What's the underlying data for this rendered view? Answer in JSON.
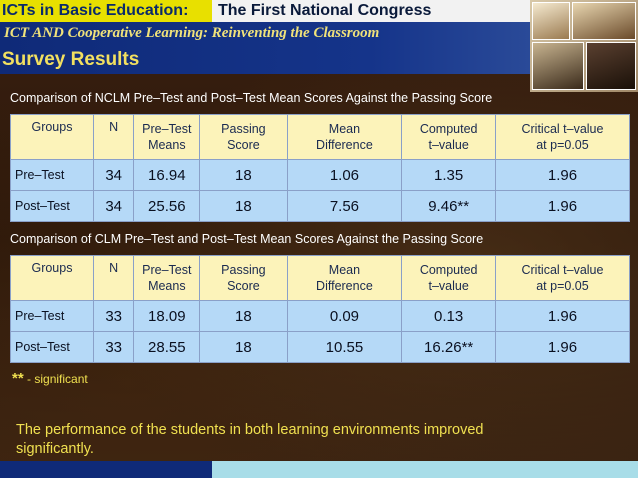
{
  "header": {
    "left_label": "ICTs in Basic Education:",
    "right_label": "The First National Congress",
    "subtitle": "ICT AND Cooperative Learning: Reinventing the Classroom",
    "section_title": "Survey Results"
  },
  "table1": {
    "caption": "Comparison of NCLM Pre–Test and Post–Test Mean Scores Against the Passing Score",
    "headers": [
      {
        "l1": "Groups",
        "l2": ""
      },
      {
        "l1": "N",
        "l2": ""
      },
      {
        "l1": "Pre–Test",
        "l2": "Means"
      },
      {
        "l1": "Passing",
        "l2": "Score"
      },
      {
        "l1": "Mean",
        "l2": "Difference"
      },
      {
        "l1": "Computed",
        "l2": "t–value"
      },
      {
        "l1": "Critical t–value",
        "l2": "at p=0.05"
      }
    ],
    "rows": [
      [
        "Pre–Test",
        "34",
        "16.94",
        "18",
        "1.06",
        "1.35",
        "1.96"
      ],
      [
        "Post–Test",
        "34",
        "25.56",
        "18",
        "7.56",
        "9.46**",
        "1.96"
      ]
    ]
  },
  "table2": {
    "caption": "Comparison of CLM Pre–Test and Post–Test Mean Scores Against the Passing Score",
    "headers": [
      {
        "l1": "Groups",
        "l2": ""
      },
      {
        "l1": "N",
        "l2": ""
      },
      {
        "l1": "Pre–Test",
        "l2": "Means"
      },
      {
        "l1": "Passing",
        "l2": "Score"
      },
      {
        "l1": "Mean",
        "l2": "Difference"
      },
      {
        "l1": "Computed",
        "l2": "t–value"
      },
      {
        "l1": "Critical t–value",
        "l2": "at p=0.05"
      }
    ],
    "rows": [
      [
        "Pre–Test",
        "33",
        "18.09",
        "18",
        "0.09",
        "0.13",
        "1.96"
      ],
      [
        "Post–Test",
        "33",
        "28.55",
        "18",
        "10.55",
        "16.26**",
        "1.96"
      ]
    ]
  },
  "note": {
    "stars": "**",
    "text": " - significant"
  },
  "conclusion": "The performance of the students in both learning environments improved significantly."
}
